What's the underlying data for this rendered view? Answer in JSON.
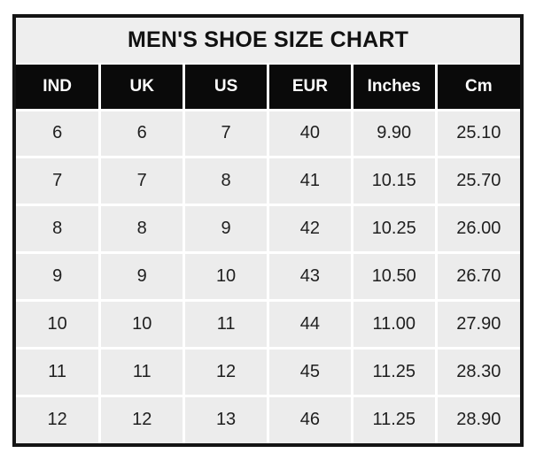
{
  "title": "MEN'S SHOE SIZE CHART",
  "colors": {
    "outer_border": "#141414",
    "gridline": "#ffffff",
    "title_background": "#eeeeee",
    "header_background": "#0a0a0a",
    "header_text": "#ffffff",
    "row_background": "#ececec",
    "body_text": "#1f1f1f",
    "page_background": "#ffffff"
  },
  "table": {
    "columns": [
      "IND",
      "UK",
      "US",
      "EUR",
      "Inches",
      "Cm"
    ],
    "rows": [
      [
        "6",
        "6",
        "7",
        "40",
        "9.90",
        "25.10"
      ],
      [
        "7",
        "7",
        "8",
        "41",
        "10.15",
        "25.70"
      ],
      [
        "8",
        "8",
        "9",
        "42",
        "10.25",
        "26.00"
      ],
      [
        "9",
        "9",
        "10",
        "43",
        "10.50",
        "26.70"
      ],
      [
        "10",
        "10",
        "11",
        "44",
        "11.00",
        "27.90"
      ],
      [
        "11",
        "11",
        "12",
        "45",
        "11.25",
        "28.30"
      ],
      [
        "12",
        "12",
        "13",
        "46",
        "11.25",
        "28.90"
      ]
    ]
  },
  "chart_data": {
    "type": "table",
    "title": "MEN'S SHOE SIZE CHART",
    "columns": [
      "IND",
      "UK",
      "US",
      "EUR",
      "Inches",
      "Cm"
    ],
    "rows": [
      [
        6,
        6,
        7,
        40,
        9.9,
        25.1
      ],
      [
        7,
        7,
        8,
        41,
        10.15,
        25.7
      ],
      [
        8,
        8,
        9,
        42,
        10.25,
        26.0
      ],
      [
        9,
        9,
        10,
        43,
        10.5,
        26.7
      ],
      [
        10,
        10,
        11,
        44,
        11.0,
        27.9
      ],
      [
        11,
        11,
        12,
        45,
        11.25,
        28.3
      ],
      [
        12,
        12,
        13,
        46,
        11.25,
        28.9
      ]
    ]
  }
}
